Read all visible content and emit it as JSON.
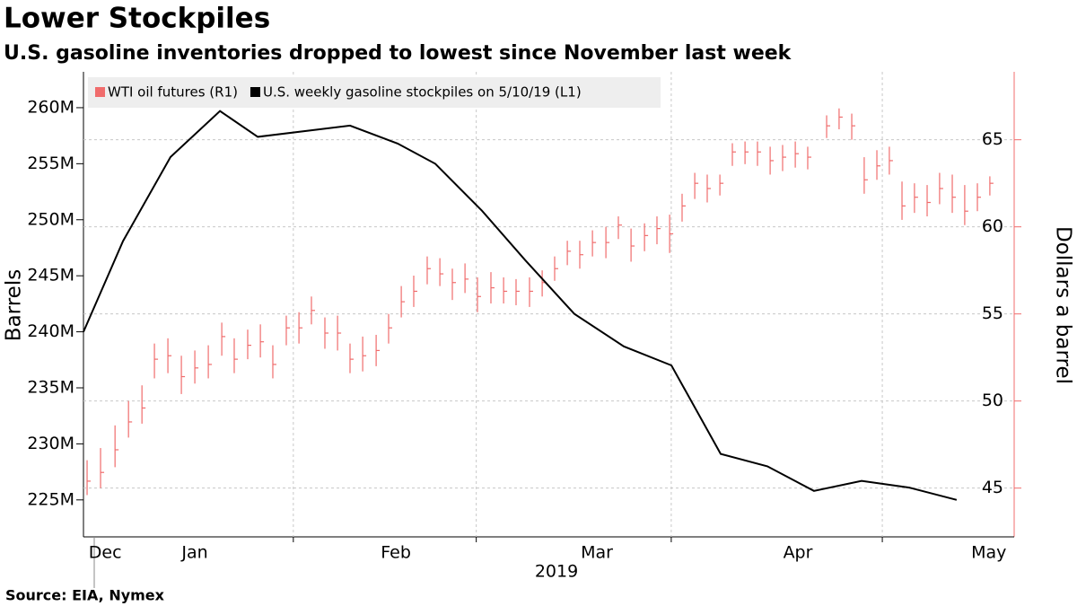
{
  "chart_data": {
    "type": "line",
    "title": "Lower Stockpiles",
    "subtitle": "U.S. gasoline inventories dropped to lowest since November last week",
    "source": "Source: EIA, Nymex",
    "ylabel": "Barrels",
    "y2label": "Dollars a barrel",
    "xlabel": "2019",
    "xlim": [
      0.946,
      5.576
    ],
    "xticks": [
      {
        "value": 1.054,
        "label": "Dec"
      },
      {
        "value": 1.5,
        "label": "Jan"
      },
      {
        "value": 2.5,
        "label": "Feb"
      },
      {
        "value": 3.5,
        "label": "Mar"
      },
      {
        "value": 4.5,
        "label": "Apr"
      },
      {
        "value": 5.45,
        "label": "May"
      }
    ],
    "xgrid": [
      1.99,
      2.9,
      3.87,
      4.92
    ],
    "ylim": [
      221.7,
      263.2
    ],
    "yticks": [
      {
        "value": 225,
        "label": "225M"
      },
      {
        "value": 230,
        "label": "230M"
      },
      {
        "value": 235,
        "label": "235M"
      },
      {
        "value": 240,
        "label": "240M"
      },
      {
        "value": 245,
        "label": "245M"
      },
      {
        "value": 250,
        "label": "250M"
      },
      {
        "value": 255,
        "label": "255M"
      },
      {
        "value": 260,
        "label": "260M"
      }
    ],
    "y2lim": [
      42.2,
      68.9
    ],
    "y2ticks": [
      45,
      50,
      55,
      60,
      65
    ],
    "grid": true,
    "legend": "top-left",
    "series": [
      {
        "name": "WTI oil futures (R1)",
        "color": "#f06c6c",
        "axis": "y2",
        "kind": "ohlc",
        "x": [
          0.964,
          1.031,
          1.103,
          1.17,
          1.237,
          1.299,
          1.366,
          1.433,
          1.5,
          1.567,
          1.634,
          1.696,
          1.763,
          1.826,
          1.888,
          1.955,
          2.018,
          2.08,
          2.147,
          2.21,
          2.272,
          2.335,
          2.402,
          2.464,
          2.527,
          2.589,
          2.656,
          2.719,
          2.781,
          2.844,
          2.906,
          2.973,
          3.036,
          3.098,
          3.165,
          3.228,
          3.29,
          3.353,
          3.415,
          3.478,
          3.545,
          3.607,
          3.67,
          3.737,
          3.799,
          3.862,
          3.924,
          3.987,
          4.049,
          4.112,
          4.174,
          4.237,
          4.299,
          4.362,
          4.424,
          4.487,
          4.549,
          4.643,
          4.705,
          4.768,
          4.83,
          4.893,
          4.955,
          5.018,
          5.08,
          5.143,
          5.205,
          5.268,
          5.33,
          5.393,
          5.455
        ],
        "values": [
          45.4,
          45.9,
          47.2,
          48.8,
          49.6,
          52.4,
          52.6,
          51.4,
          51.9,
          52.1,
          53.7,
          52.4,
          53.2,
          53.4,
          52.1,
          54.2,
          54.2,
          55.2,
          53.9,
          53.9,
          52.4,
          52.6,
          52.9,
          54.2,
          55.7,
          56.3,
          57.6,
          57.3,
          56.8,
          57.0,
          56.0,
          56.5,
          56.3,
          56.3,
          56.3,
          56.8,
          57.6,
          58.6,
          58.4,
          59.1,
          59.1,
          60.1,
          58.9,
          59.5,
          59.9,
          59.6,
          61.2,
          62.5,
          62.2,
          62.5,
          64.3,
          64.3,
          64.3,
          63.8,
          64.0,
          64.2,
          64.0,
          65.8,
          66.3,
          65.8,
          62.7,
          63.5,
          63.8,
          61.2,
          61.7,
          61.4,
          62.2,
          61.7,
          60.9,
          61.7,
          62.5
        ],
        "high": [
          46.6,
          47.3,
          48.6,
          50.0,
          50.9,
          53.3,
          53.6,
          52.6,
          52.9,
          53.2,
          54.5,
          53.6,
          54.1,
          54.4,
          53.2,
          54.9,
          55.1,
          56.0,
          54.8,
          54.9,
          53.3,
          53.7,
          53.8,
          55.0,
          56.6,
          57.2,
          58.3,
          58.2,
          57.6,
          57.9,
          57.1,
          57.4,
          57.1,
          57.0,
          57.1,
          57.5,
          58.3,
          59.2,
          59.2,
          59.8,
          60.0,
          60.6,
          59.9,
          60.2,
          60.6,
          60.7,
          61.9,
          63.1,
          63.0,
          63.0,
          64.8,
          64.9,
          64.9,
          64.6,
          64.7,
          64.9,
          64.6,
          66.4,
          66.8,
          66.5,
          64.0,
          64.4,
          64.6,
          62.6,
          62.5,
          62.4,
          63.1,
          63.0,
          62.4,
          62.5,
          62.9
        ],
        "low": [
          44.6,
          45.0,
          46.2,
          47.9,
          48.7,
          51.3,
          51.6,
          50.4,
          51.0,
          51.3,
          52.6,
          51.6,
          52.4,
          52.5,
          51.3,
          53.2,
          53.3,
          54.4,
          53.0,
          52.9,
          51.6,
          51.7,
          52.0,
          53.3,
          54.8,
          55.4,
          56.7,
          56.6,
          55.8,
          56.2,
          55.1,
          55.6,
          55.6,
          55.5,
          55.4,
          56.0,
          56.9,
          57.8,
          57.6,
          58.3,
          58.2,
          59.3,
          58.0,
          58.6,
          59.0,
          58.5,
          60.3,
          61.6,
          61.4,
          61.8,
          63.5,
          63.6,
          63.5,
          63.0,
          63.2,
          63.4,
          63.3,
          65.1,
          65.6,
          65.0,
          61.9,
          62.7,
          63.0,
          60.4,
          60.8,
          60.6,
          61.3,
          60.8,
          60.1,
          60.9,
          61.8
        ]
      },
      {
        "name": "U.S. weekly gasoline stockpiles on 5/10/19 (L1)",
        "color": "#000000",
        "axis": "y",
        "x": [
          0.946,
          1.143,
          1.379,
          1.625,
          1.813,
          2.272,
          2.509,
          2.696,
          2.929,
          3.143,
          3.388,
          3.634,
          3.871,
          4.116,
          4.348,
          4.58,
          4.817,
          5.054,
          5.29
        ],
        "values": [
          240.0,
          248.1,
          255.6,
          259.7,
          257.4,
          258.4,
          256.8,
          255.0,
          250.8,
          246.4,
          241.6,
          238.7,
          237.0,
          229.1,
          228.0,
          225.8,
          226.7,
          226.1,
          225.0
        ]
      }
    ]
  }
}
